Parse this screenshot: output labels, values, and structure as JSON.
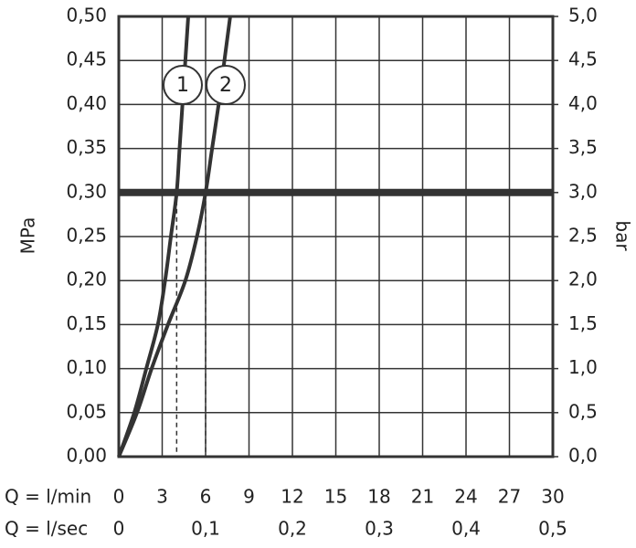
{
  "chart_data": {
    "type": "line",
    "x_label": "Q = l/min",
    "x2_label": "Q = l/sec",
    "y_label": "MPa",
    "y2_label": "bar",
    "xlim": [
      0,
      30
    ],
    "xticks": [
      0,
      3,
      6,
      9,
      12,
      15,
      18,
      21,
      24,
      27,
      30
    ],
    "x2lim": [
      0,
      0.5
    ],
    "x2ticks": [
      0,
      {
        "value": 0.1,
        "label": "0,1"
      },
      {
        "value": 0.2,
        "label": "0,2"
      },
      {
        "value": 0.3,
        "label": "0,3"
      },
      {
        "value": 0.4,
        "label": "0,4"
      },
      {
        "value": 0.5,
        "label": "0,5"
      }
    ],
    "ylim": [
      0,
      0.5
    ],
    "yticks": [
      {
        "value": 0,
        "label": "0,00"
      },
      {
        "value": 0.05,
        "label": "0,05"
      },
      {
        "value": 0.1,
        "label": "0,10"
      },
      {
        "value": 0.15,
        "label": "0,15"
      },
      {
        "value": 0.2,
        "label": "0,20"
      },
      {
        "value": 0.25,
        "label": "0,25"
      },
      {
        "value": 0.3,
        "label": "0,30"
      },
      {
        "value": 0.35,
        "label": "0,35"
      },
      {
        "value": 0.4,
        "label": "0,40"
      },
      {
        "value": 0.45,
        "label": "0,45"
      },
      {
        "value": 0.5,
        "label": "0,50"
      }
    ],
    "y2lim": [
      0,
      5
    ],
    "y2ticks": [
      {
        "value": 0,
        "label": "0,0"
      },
      {
        "value": 0.5,
        "label": "0,5"
      },
      {
        "value": 1,
        "label": "1,0"
      },
      {
        "value": 1.5,
        "label": "1,5"
      },
      {
        "value": 2,
        "label": "2,0"
      },
      {
        "value": 2.5,
        "label": "2,5"
      },
      {
        "value": 3,
        "label": "3,0"
      },
      {
        "value": 3.5,
        "label": "3,5"
      },
      {
        "value": 4,
        "label": "4,0"
      },
      {
        "value": 4.5,
        "label": "4,5"
      },
      {
        "value": 5,
        "label": "5,0"
      }
    ],
    "grid": true,
    "reference_line": 0.3,
    "drop_lines": [
      4,
      6
    ],
    "series": [
      {
        "name": "1",
        "color": "#333333",
        "x": [
          0,
          1.07,
          1.9,
          2.7,
          3.2,
          3.6,
          4.0,
          4.2,
          4.4,
          4.6,
          4.8
        ],
        "values": [
          0,
          0.05,
          0.1,
          0.15,
          0.2,
          0.25,
          0.3,
          0.35,
          0.4,
          0.45,
          0.5
        ]
      },
      {
        "name": "2",
        "color": "#333333",
        "x": [
          0,
          1.26,
          2.27,
          3.4,
          4.6,
          5.4,
          6.0,
          6.45,
          6.9,
          7.3,
          7.7
        ],
        "values": [
          0,
          0.05,
          0.1,
          0.15,
          0.2,
          0.25,
          0.3,
          0.35,
          0.4,
          0.45,
          0.5
        ]
      }
    ]
  }
}
